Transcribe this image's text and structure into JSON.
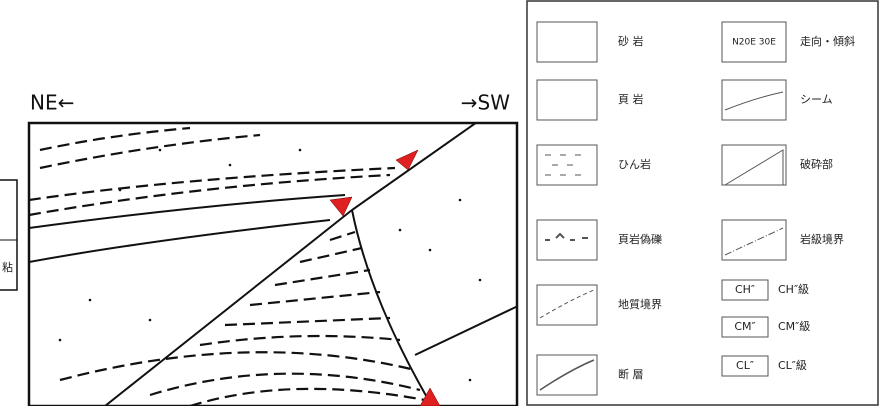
{
  "section_labels": {
    "left": "NE←",
    "right": "→SW"
  },
  "side_note": "粘",
  "legend": {
    "left_items": [
      {
        "label": "砂 岩"
      },
      {
        "label": "頁 岩"
      },
      {
        "label": "ひん岩"
      },
      {
        "label": "頁岩偽礫"
      },
      {
        "label": "地質境界"
      },
      {
        "label": "断 層"
      }
    ],
    "right_items": [
      {
        "symbol": "N20E 30E",
        "label": "走向・傾斜"
      },
      {
        "label": "シーム"
      },
      {
        "label": "破砕部"
      },
      {
        "label": "岩級境界"
      }
    ],
    "rock_classes": [
      {
        "symbol": "CH″",
        "label": "CH″級"
      },
      {
        "symbol": "CM″",
        "label": "CM″級"
      },
      {
        "symbol": "CL″",
        "label": "CL″級"
      }
    ]
  }
}
